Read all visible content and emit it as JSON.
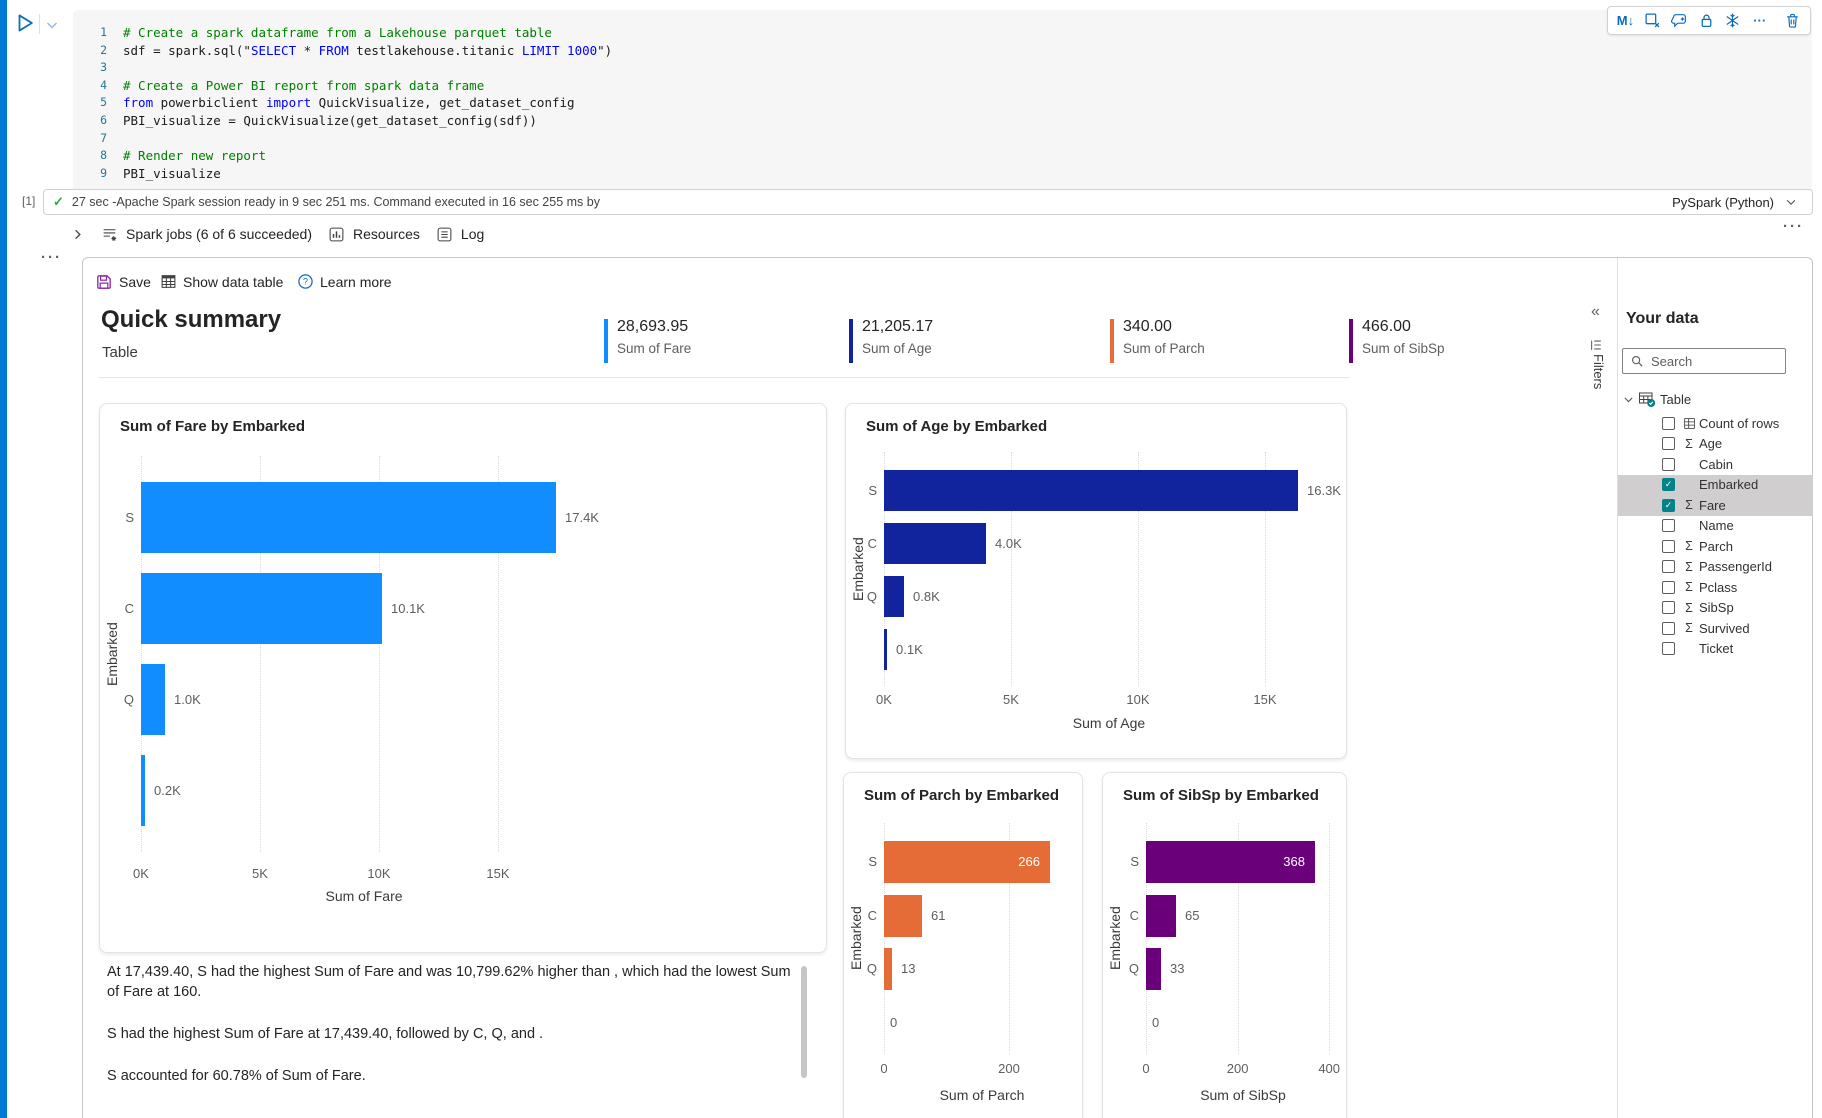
{
  "cell": {
    "run_status": {
      "execution_count": "[1]",
      "status_text": "27 sec -Apache Spark session ready in 9 sec 251 ms. Command executed in 16 sec 255 ms by",
      "language": "PySpark (Python)"
    },
    "toolbar_icons": [
      "markdown-icon",
      "clear-output-icon",
      "add-comment-icon",
      "lock-cell-icon",
      "freeze-cell-icon",
      "more-options-icon",
      "delete-cell-icon"
    ],
    "code_lines": [
      {
        "n": "1",
        "tokens": [
          {
            "c": "c",
            "t": "# Create a spark dataframe from a Lakehouse parquet table"
          }
        ]
      },
      {
        "n": "2",
        "tokens": [
          {
            "c": "d",
            "t": "sdf = spark.sql(\""
          },
          {
            "c": "k",
            "t": "SELECT"
          },
          {
            "c": "d",
            "t": " * "
          },
          {
            "c": "k",
            "t": "FROM"
          },
          {
            "c": "d",
            "t": " testlakehouse.titanic "
          },
          {
            "c": "k",
            "t": "LIMIT"
          },
          {
            "c": "d",
            "t": " "
          },
          {
            "c": "k",
            "t": "1000"
          },
          {
            "c": "d",
            "t": "\")"
          }
        ]
      },
      {
        "n": "3",
        "tokens": []
      },
      {
        "n": "4",
        "tokens": [
          {
            "c": "c",
            "t": "# Create a Power BI report from spark data frame"
          }
        ]
      },
      {
        "n": "5",
        "tokens": [
          {
            "c": "k",
            "t": "from"
          },
          {
            "c": "d",
            "t": " powerbiclient "
          },
          {
            "c": "k",
            "t": "import"
          },
          {
            "c": "d",
            "t": " QuickVisualize, get_dataset_config"
          }
        ]
      },
      {
        "n": "6",
        "tokens": [
          {
            "c": "d",
            "t": "PBI_visualize = QuickVisualize(get_dataset_config(sdf))"
          }
        ]
      },
      {
        "n": "7",
        "tokens": []
      },
      {
        "n": "8",
        "tokens": [
          {
            "c": "c",
            "t": "# Render new report"
          }
        ]
      },
      {
        "n": "9",
        "tokens": [
          {
            "c": "d",
            "t": "PBI_visualize"
          }
        ]
      }
    ],
    "jobs_bar": {
      "spark_jobs": "Spark jobs (6 of 6 succeeded)",
      "resources": "Resources",
      "log": "Log"
    }
  },
  "output": {
    "toolbar": {
      "save": "Save",
      "show_data_table": "Show data table",
      "learn_more": "Learn more"
    },
    "header": {
      "title": "Quick summary",
      "subtitle": "Table"
    },
    "kpis": [
      {
        "value": "28,693.95",
        "label": "Sum of Fare",
        "color": "#118DFF"
      },
      {
        "value": "21,205.17",
        "label": "Sum of Age",
        "color": "#12239E"
      },
      {
        "value": "340.00",
        "label": "Sum of Parch",
        "color": "#E66C37"
      },
      {
        "value": "466.00",
        "label": "Sum of SibSp",
        "color": "#6B007B"
      }
    ],
    "insights": [
      "At 17,439.40, S had the highest Sum of Fare and was 10,799.62% higher than , which had the lowest Sum of Fare at 160.",
      "S had the highest Sum of Fare at 17,439.40, followed by C, Q, and .",
      "S accounted for 60.78% of Sum of Fare."
    ]
  },
  "chart_data": [
    {
      "type": "bar",
      "orientation": "horizontal",
      "title": "Sum of Fare by Embarked",
      "categories": [
        "S",
        "C",
        "Q",
        ""
      ],
      "values": [
        17439.4,
        10113,
        1003,
        160
      ],
      "value_labels": [
        "17.4K",
        "10.1K",
        "1.0K",
        "0.2K"
      ],
      "xlabel": "Sum of Fare",
      "ylabel": "Embarked",
      "color": "#118DFF",
      "xlim": [
        0,
        17600
      ],
      "grid": true,
      "legend": false,
      "ticks": [
        {
          "v": 0,
          "label": "0K"
        },
        {
          "v": 5000,
          "label": "5K"
        },
        {
          "v": 10000,
          "label": "10K"
        },
        {
          "v": 15000,
          "label": "15K"
        }
      ]
    },
    {
      "type": "bar",
      "orientation": "horizontal",
      "title": "Sum of Age by Embarked",
      "categories": [
        "S",
        "C",
        "Q",
        ""
      ],
      "values": [
        16300,
        4000,
        800,
        100
      ],
      "value_labels": [
        "16.3K",
        "4.0K",
        "0.8K",
        "0.1K"
      ],
      "xlabel": "Sum of Age",
      "ylabel": "Embarked",
      "color": "#12239E",
      "xlim": [
        0,
        17000
      ],
      "grid": true,
      "legend": false,
      "ticks": [
        {
          "v": 0,
          "label": "0K"
        },
        {
          "v": 5000,
          "label": "5K"
        },
        {
          "v": 10000,
          "label": "10K"
        },
        {
          "v": 15000,
          "label": "15K"
        }
      ]
    },
    {
      "type": "bar",
      "orientation": "horizontal",
      "title": "Sum of Parch by Embarked",
      "categories": [
        "S",
        "C",
        "Q",
        ""
      ],
      "values": [
        266,
        61,
        13,
        0
      ],
      "value_labels": [
        "266",
        "61",
        "13",
        "0"
      ],
      "xlabel": "Sum of Parch",
      "ylabel": "Embarked",
      "color": "#E66C37",
      "xlim": [
        0,
        320
      ],
      "grid": true,
      "legend": false,
      "ticks": [
        {
          "v": 0,
          "label": "0"
        },
        {
          "v": 200,
          "label": "200"
        }
      ]
    },
    {
      "type": "bar",
      "orientation": "horizontal",
      "title": "Sum of SibSp by Embarked",
      "categories": [
        "S",
        "C",
        "Q",
        ""
      ],
      "values": [
        368,
        65,
        33,
        0
      ],
      "value_labels": [
        "368",
        "65",
        "33",
        "0"
      ],
      "xlabel": "Sum of SibSp",
      "ylabel": "Embarked",
      "color": "#6B007B",
      "xlim": [
        0,
        437
      ],
      "grid": true,
      "legend": false,
      "ticks": [
        {
          "v": 0,
          "label": "0"
        },
        {
          "v": 200,
          "label": "200"
        },
        {
          "v": 400,
          "label": "400"
        }
      ]
    }
  ],
  "filters_pane": {
    "label": "Filters"
  },
  "data_pane": {
    "title": "Your data",
    "search_placeholder": "Search",
    "table": {
      "label": "Table"
    },
    "fields": [
      {
        "label": "Count of rows",
        "glyph": "countrows",
        "checked": false,
        "highlighted": false
      },
      {
        "label": "Age",
        "glyph": "sigma",
        "checked": false,
        "highlighted": false
      },
      {
        "label": "Cabin",
        "glyph": "none",
        "checked": false,
        "highlighted": false
      },
      {
        "label": "Embarked",
        "glyph": "none",
        "checked": true,
        "highlighted": true
      },
      {
        "label": "Fare",
        "glyph": "sigma",
        "checked": true,
        "highlighted": true
      },
      {
        "label": "Name",
        "glyph": "none",
        "checked": false,
        "highlighted": false
      },
      {
        "label": "Parch",
        "glyph": "sigma",
        "checked": false,
        "highlighted": false
      },
      {
        "label": "PassengerId",
        "glyph": "sigma",
        "checked": false,
        "highlighted": false
      },
      {
        "label": "Pclass",
        "glyph": "sigma",
        "checked": false,
        "highlighted": false
      },
      {
        "label": "SibSp",
        "glyph": "sigma",
        "checked": false,
        "highlighted": false
      },
      {
        "label": "Survived",
        "glyph": "sigma",
        "checked": false,
        "highlighted": false
      },
      {
        "label": "Ticket",
        "glyph": "none",
        "checked": false,
        "highlighted": false
      }
    ]
  }
}
